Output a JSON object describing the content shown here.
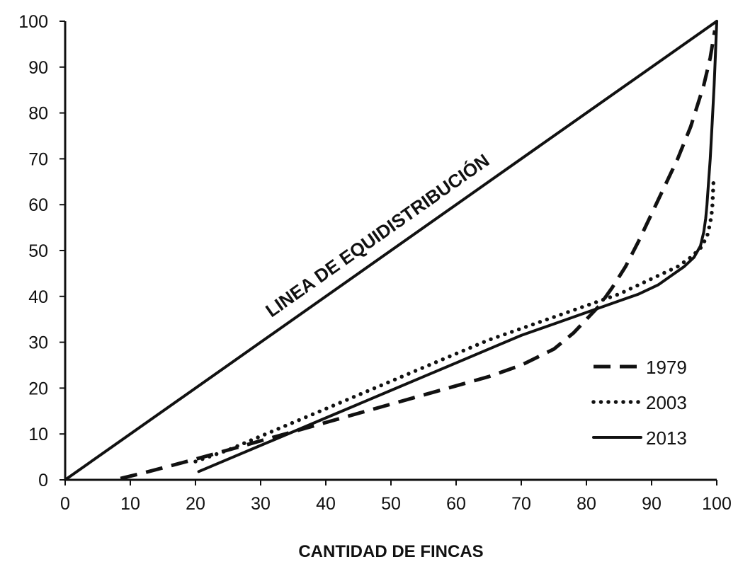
{
  "chart_data": {
    "type": "line",
    "title": "",
    "xlabel": "CANTIDAD DE FINCAS",
    "ylabel": "",
    "xlim": [
      0,
      100
    ],
    "ylim": [
      0,
      100
    ],
    "xticks": [
      0,
      10,
      20,
      30,
      40,
      50,
      60,
      70,
      80,
      90,
      100
    ],
    "yticks": [
      0,
      10,
      20,
      30,
      40,
      50,
      60,
      70,
      80,
      90,
      100
    ],
    "grid": false,
    "legend_position": "bottom-right",
    "annotations": [
      {
        "text": "LINEA DE EQUIDISTRIBUCIÓN"
      }
    ],
    "reference_line": {
      "x": [
        0,
        100
      ],
      "y": [
        0,
        100
      ],
      "style": "solid"
    },
    "series": [
      {
        "name": "1979",
        "style": "dashed",
        "x": [
          8.5,
          12,
          16,
          20,
          25,
          30,
          35,
          40,
          45,
          50,
          55,
          60,
          65,
          70,
          75,
          78,
          80,
          82,
          84,
          86,
          88,
          90,
          92,
          94,
          96,
          98,
          99,
          99.7
        ],
        "y": [
          0.3,
          1.5,
          3,
          4.5,
          6.5,
          8.5,
          10.5,
          12.5,
          14.5,
          16.5,
          18.5,
          20.5,
          22.5,
          25,
          28.5,
          32,
          35,
          38,
          42,
          46.5,
          52,
          58,
          64,
          70,
          77,
          86,
          92,
          98
        ]
      },
      {
        "name": "2003",
        "style": "dotted",
        "x": [
          20,
          25,
          30,
          35,
          40,
          45,
          50,
          55,
          60,
          65,
          70,
          75,
          80,
          85,
          88,
          91,
          94,
          96,
          97.5,
          98.5,
          99,
          99.3,
          99.4,
          99.5
        ],
        "y": [
          4,
          6.5,
          9.5,
          12.5,
          15.5,
          18.5,
          21.5,
          24.5,
          27.5,
          30.5,
          33,
          35.5,
          38,
          40.5,
          42.5,
          44.5,
          46.5,
          48.5,
          50.5,
          53,
          56,
          59,
          62,
          65
        ]
      },
      {
        "name": "2013",
        "style": "solid",
        "x": [
          20.5,
          25,
          30,
          35,
          40,
          45,
          50,
          55,
          60,
          65,
          70,
          75,
          80,
          85,
          88,
          91,
          93,
          95,
          96.5,
          97.5,
          98,
          98.3,
          98.5,
          98.7,
          99,
          99.3,
          99.6,
          99.8,
          100
        ],
        "y": [
          1.8,
          4.5,
          7.5,
          10.5,
          13.5,
          16.5,
          19.5,
          22.5,
          25.5,
          28.5,
          31.5,
          34,
          36.5,
          39,
          40.5,
          42.5,
          44.5,
          46.5,
          48.5,
          51,
          54,
          57,
          60,
          64,
          70,
          78,
          86,
          93,
          100
        ]
      }
    ]
  }
}
